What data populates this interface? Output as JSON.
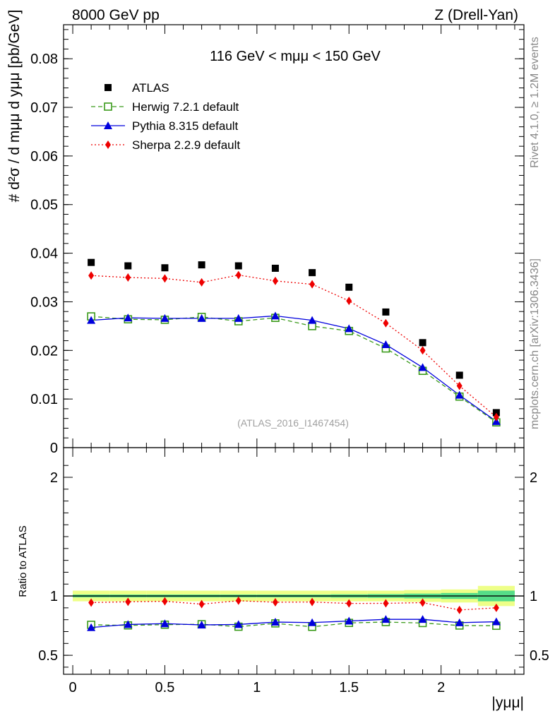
{
  "header": {
    "left": "8000 GeV pp",
    "right": "Z (Drell-Yan)"
  },
  "side_labels": {
    "rivet": "Rivet 4.1.0, ≥ 1.2M events",
    "mcplots": "mcplots.cern.ch [arXiv:1306.3436]"
  },
  "chart_data": [
    {
      "type": "scatter",
      "panel": "main",
      "title": "116 GeV < mμμ < 150 GeV",
      "ylabel": "# d²σ / d mμμ d yμμ [pb/GeV]",
      "analysis_tag": "(ATLAS_2016_I1467454)",
      "xlim": [
        -0.05,
        2.45
      ],
      "ylim": [
        0,
        0.087
      ],
      "yticks": [
        0,
        0.01,
        0.02,
        0.03,
        0.04,
        0.05,
        0.06,
        0.07,
        0.08
      ],
      "ytick_labels": [
        "0",
        "0.01",
        "0.02",
        "0.03",
        "0.04",
        "0.05",
        "0.06",
        "0.07",
        "0.08"
      ],
      "x": [
        0.1,
        0.3,
        0.5,
        0.7,
        0.9,
        1.1,
        1.3,
        1.5,
        1.7,
        1.9,
        2.1,
        2.3
      ],
      "series": [
        {
          "name": "ATLAS",
          "color": "#000000",
          "marker": "square",
          "values": [
            0.0381,
            0.0374,
            0.037,
            0.0376,
            0.0374,
            0.0369,
            0.036,
            0.033,
            0.0279,
            0.0216,
            0.0149,
            0.0072
          ]
        },
        {
          "name": "Herwig 7.2.1 default",
          "color": "#3a9a1a",
          "marker": "open-square",
          "dash": "6,4",
          "values": [
            0.027,
            0.0264,
            0.0263,
            0.0269,
            0.026,
            0.0267,
            0.025,
            0.024,
            0.0204,
            0.0158,
            0.0105,
            0.0052
          ]
        },
        {
          "name": "Pythia 8.315 default",
          "color": "#0000dd",
          "marker": "triangle",
          "values": [
            0.0262,
            0.0267,
            0.0266,
            0.0266,
            0.0266,
            0.0271,
            0.0262,
            0.0245,
            0.0212,
            0.0165,
            0.0108,
            0.0054
          ]
        },
        {
          "name": "Sherpa 2.2.9 default",
          "color": "#ee0000",
          "marker": "diamond",
          "dash": "2,3",
          "values": [
            0.0354,
            0.035,
            0.0348,
            0.034,
            0.0355,
            0.0343,
            0.0336,
            0.0302,
            0.0256,
            0.02,
            0.0127,
            0.0063
          ]
        }
      ]
    },
    {
      "type": "scatter",
      "panel": "ratio",
      "ylabel": "Ratio to ATLAS",
      "xlabel": "|yμμ|",
      "xlim": [
        -0.05,
        2.45
      ],
      "ylim": [
        0.34,
        2.25
      ],
      "yticks": [
        0.5,
        1,
        2
      ],
      "ytick_labels": [
        "0.5",
        "1",
        "2"
      ],
      "xticks": [
        0,
        0.5,
        1,
        1.5,
        2
      ],
      "xtick_labels": [
        "0",
        "0.5",
        "1",
        "1.5",
        "2"
      ],
      "x": [
        0.1,
        0.3,
        0.5,
        0.7,
        0.9,
        1.1,
        1.3,
        1.5,
        1.7,
        1.9,
        2.1,
        2.3
      ],
      "x_edges": [
        0.0,
        0.2,
        0.4,
        0.6,
        0.8,
        1.0,
        1.2,
        1.4,
        1.6,
        1.8,
        2.0,
        2.2,
        2.4
      ],
      "uncertainty_band": {
        "stat_color": "#55dd88",
        "total_color": "#eeff88",
        "total_halfwidth": [
          0.045,
          0.045,
          0.045,
          0.045,
          0.045,
          0.045,
          0.045,
          0.045,
          0.045,
          0.05,
          0.055,
          0.085
        ],
        "stat_halfwidth": [
          0.012,
          0.012,
          0.012,
          0.012,
          0.012,
          0.012,
          0.012,
          0.014,
          0.016,
          0.02,
          0.025,
          0.045
        ]
      },
      "series": [
        {
          "name": "Herwig 7.2.1 default",
          "color": "#3a9a1a",
          "marker": "open-square",
          "dash": "6,4",
          "values": [
            0.757,
            0.752,
            0.758,
            0.762,
            0.741,
            0.769,
            0.74,
            0.773,
            0.78,
            0.772,
            0.751,
            0.749
          ]
        },
        {
          "name": "Pythia 8.315 default",
          "color": "#0000dd",
          "marker": "triangle",
          "values": [
            0.734,
            0.76,
            0.767,
            0.756,
            0.76,
            0.78,
            0.776,
            0.789,
            0.803,
            0.803,
            0.775,
            0.783
          ]
        },
        {
          "name": "Sherpa 2.2.9 default",
          "color": "#ee0000",
          "marker": "diamond",
          "dash": "2,3",
          "values": [
            0.944,
            0.951,
            0.955,
            0.931,
            0.96,
            0.947,
            0.949,
            0.937,
            0.938,
            0.944,
            0.882,
            0.9
          ]
        }
      ]
    }
  ]
}
